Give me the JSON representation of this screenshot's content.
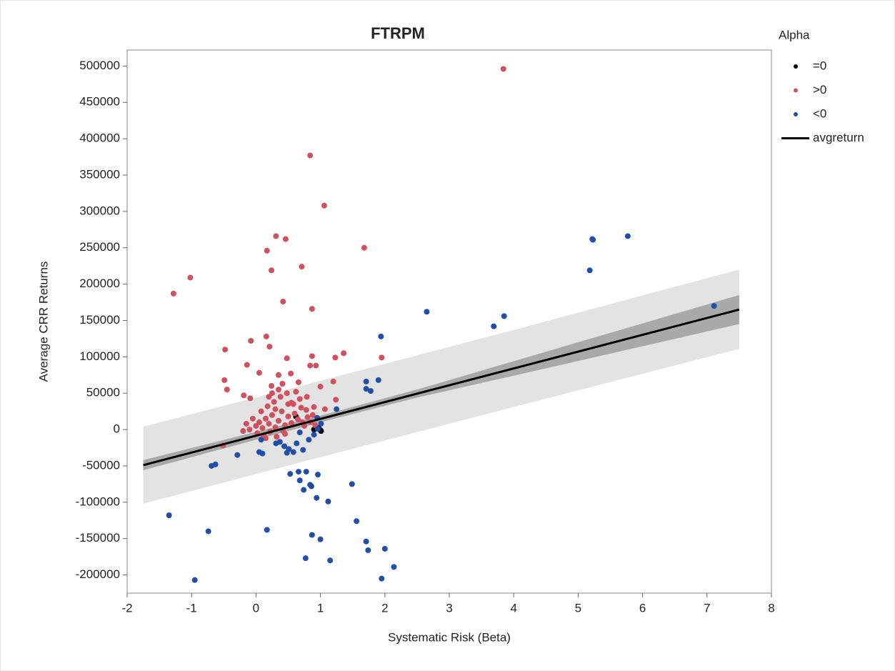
{
  "chart_data": {
    "type": "scatter",
    "title": "FTRPM",
    "x_label": "Systematic Risk (Beta)",
    "y_label": "Average CRR Returns",
    "legend_title": "Alpha",
    "xlim": [
      -2,
      8
    ],
    "ylim": [
      -225000,
      522000
    ],
    "xticks": [
      -2,
      -1,
      0,
      1,
      2,
      3,
      4,
      5,
      6,
      7,
      8
    ],
    "yticks": [
      -200000,
      -150000,
      -100000,
      -50000,
      0,
      50000,
      100000,
      150000,
      200000,
      250000,
      300000,
      350000,
      400000,
      450000,
      500000
    ],
    "legend": "right",
    "series": [
      {
        "name": "=0",
        "type": "scatter",
        "color": "#000000",
        "x": [
          0.9,
          0.96,
          1.0,
          0.98,
          0.62,
          1.01
        ],
        "values": [
          0,
          2000,
          -1000,
          1000,
          18000,
          -2000
        ]
      },
      {
        "name": ">0",
        "type": "scatter",
        "color": "#d0505e",
        "x": [
          3.84,
          0.84,
          1.06,
          0.31,
          0.46,
          0.17,
          1.68,
          0.24,
          0.71,
          -1.02,
          -1.28,
          0.42,
          0.87,
          0.16,
          -0.08,
          0.21,
          -0.48,
          1.36,
          1.23,
          1.95,
          0.48,
          0.87,
          0.84,
          0.93,
          -0.14,
          -0.49,
          0.05,
          0.35,
          0.54,
          0.66,
          1.0,
          1.2,
          -0.45,
          -0.19,
          -0.09,
          0.24,
          0.41,
          0.79,
          1.24,
          1.07,
          0.55,
          0.9,
          -0.51,
          -0.2,
          0,
          0.05,
          0.1,
          0.15,
          0.2,
          0.25,
          0.3,
          0.35,
          0.4,
          0.45,
          0.5,
          0.55,
          0.6,
          0.65,
          0.7,
          0.75,
          0.8,
          0.85,
          0.02,
          0.12,
          0.22,
          0.32,
          0.42,
          0.08,
          0.18,
          0.28,
          0.38,
          0.48,
          0.58,
          0.68,
          0.78,
          0.88,
          -0.05,
          -0.1,
          -0.15,
          0.25,
          0.35,
          0.2,
          0.3,
          0.5,
          0.62,
          0.72,
          0.92,
          0.15,
          0.45
        ],
        "values": [
          496000,
          377000,
          308000,
          266000,
          262000,
          246000,
          250000,
          219000,
          224000,
          209000,
          187000,
          176000,
          166000,
          128000,
          122000,
          114000,
          110000,
          105000,
          99000,
          99000,
          98000,
          101000,
          88000,
          88000,
          89000,
          68000,
          78000,
          75000,
          77000,
          65000,
          59000,
          66000,
          55000,
          47000,
          43000,
          60000,
          63000,
          45000,
          41000,
          28000,
          37000,
          31000,
          -22000,
          -2000,
          5000,
          10000,
          2000,
          15000,
          8000,
          20000,
          3000,
          12000,
          25000,
          6000,
          18000,
          9000,
          22000,
          14000,
          30000,
          5000,
          17000,
          10000,
          -5000,
          -8000,
          -3000,
          -10000,
          -2000,
          25000,
          32000,
          38000,
          45000,
          50000,
          35000,
          42000,
          27000,
          20000,
          15000,
          0,
          8000,
          50000,
          55000,
          45000,
          28000,
          35000,
          52000,
          10000,
          6000,
          -12000,
          -6000
        ]
      },
      {
        "name": "<0",
        "type": "scatter",
        "color": "#1f4fa8",
        "x": [
          5.22,
          5.23,
          5.77,
          5.18,
          7.11,
          3.85,
          3.69,
          2.65,
          1.94,
          1.71,
          1.9,
          1.71,
          1.78,
          1.25,
          -1.35,
          -0.69,
          -0.63,
          -0.29,
          -0.74,
          0.17,
          -0.95,
          0.77,
          1.15,
          0.87,
          1.0,
          1.49,
          1.56,
          1.71,
          1.74,
          2.0,
          2.14,
          1.95,
          0.53,
          0.66,
          0.78,
          0.96,
          0.68,
          0.86,
          0.74,
          0.84,
          0.94,
          1.12,
          0.73,
          0.48,
          0.58,
          0.05,
          0.1,
          0.08,
          0.31,
          0.37,
          0.44,
          0.51,
          0.63,
          0.82,
          0.9,
          0.96,
          0.95,
          1.01,
          0.68
        ],
        "values": [
          262000,
          261000,
          266000,
          219000,
          170000,
          156000,
          142000,
          162000,
          128000,
          66000,
          68000,
          56000,
          53000,
          28000,
          -118000,
          -50000,
          -48000,
          -35000,
          -140000,
          -138000,
          -207000,
          -177000,
          -180000,
          -145000,
          -151000,
          -75000,
          -126000,
          -154000,
          -166000,
          -164000,
          -189000,
          -205000,
          -61000,
          -58000,
          -58000,
          -62000,
          -70000,
          -78000,
          -83000,
          -76000,
          -94000,
          -99000,
          -28000,
          -32000,
          -31000,
          -31000,
          -33000,
          -14000,
          -19000,
          -17000,
          -23000,
          -27000,
          -19000,
          -14000,
          -7000,
          1000,
          16000,
          8000,
          -4000
        ]
      },
      {
        "name": "avgreturn",
        "type": "line",
        "color": "#000000",
        "x": [
          -1.75,
          7.5
        ],
        "values": [
          -49000,
          165000
        ]
      }
    ],
    "bands": [
      {
        "color": "#e3e3e3",
        "x": [
          -1.75,
          1,
          4,
          7.5
        ],
        "lower": [
          -102000,
          -38000,
          31000,
          111000
        ],
        "upper": [
          4000,
          67000,
          137000,
          220000
        ]
      },
      {
        "color": "#a9a9a9",
        "x": [
          -1.75,
          1,
          2.5,
          4,
          7.5
        ],
        "lower": [
          -56000,
          10000,
          44000,
          74000,
          145000
        ],
        "upper": [
          -42000,
          19000,
          55000,
          94000,
          185000
        ]
      }
    ]
  }
}
